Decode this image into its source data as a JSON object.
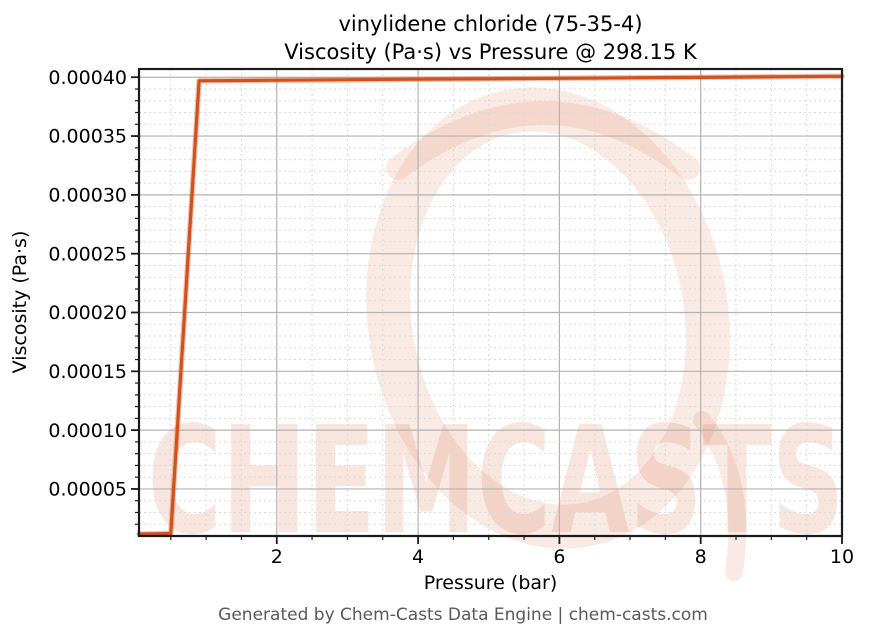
{
  "header": {
    "title_line1": "vinylidene chloride (75-35-4)",
    "title_line2": "Viscosity (Pa·s) vs Pressure @ 298.15 K"
  },
  "footer": {
    "text": "Generated by Chem-Casts Data Engine | chem-casts.com"
  },
  "watermark": {
    "text": "CHEMCASTS",
    "logo": "brush-c-ring-icon",
    "color": "#d2521e",
    "logo_opacity": 0.12,
    "text_opacity": 0.15
  },
  "colors": {
    "line": "#d2521e",
    "line_glow": "rgba(210,82,30,0.35)",
    "grid_major": "#b3b3b3",
    "grid_minor": "#d9d9d9",
    "spine": "#1a1a1a",
    "tick_label": "#000000",
    "footer_text": "#595959"
  },
  "chart_data": {
    "type": "line",
    "title": "vinylidene chloride (75-35-4)\nViscosity (Pa·s) vs Pressure @ 298.15 K",
    "xlabel": "Pressure (bar)",
    "ylabel": "Viscosity (Pa·s)",
    "substance": "vinylidene chloride",
    "cas_number": "75-35-4",
    "temperature_label": "298.15 K",
    "legend": "none",
    "grid": "major-solid-minor-dashed",
    "x": [
      0.05,
      0.25,
      0.5,
      0.9,
      2,
      3,
      4,
      5,
      6,
      7,
      8,
      9,
      10
    ],
    "y": [
      1.17e-05,
      1.18e-05,
      1.21e-05,
      0.000397,
      0.0003975,
      0.0003979,
      0.0003983,
      0.0003987,
      0.0003991,
      0.0003995,
      0.0003999,
      0.0004004,
      0.0004008
    ],
    "xlim": [
      0.05,
      10
    ],
    "ylim": [
      1e-05,
      0.000407
    ],
    "x_major_ticks": [
      2,
      4,
      6,
      8,
      10
    ],
    "x_tick_labels": [
      "2",
      "4",
      "6",
      "8",
      "10"
    ],
    "x_minor_step": 0.5,
    "y_major_ticks": [
      5e-05,
      0.0001,
      0.00015,
      0.0002,
      0.00025,
      0.0003,
      0.00035,
      0.0004
    ],
    "y_tick_labels": [
      "0.00005",
      "0.00010",
      "0.00015",
      "0.00020",
      "0.00025",
      "0.00030",
      "0.00035",
      "0.00040"
    ],
    "y_minor_step": 1e-05
  }
}
